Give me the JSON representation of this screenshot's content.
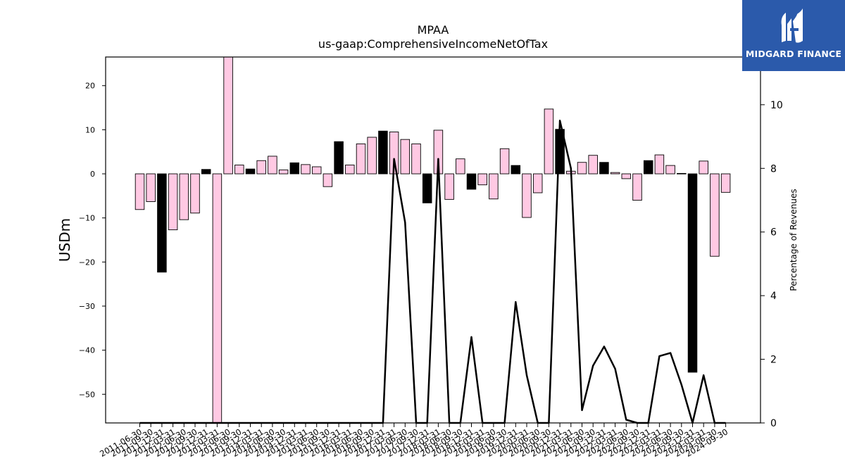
{
  "chart_data": {
    "type": "bar",
    "title": "MPAA",
    "subtitle": "us-gaap:ComprehensiveIncomeNetOfTax",
    "ylabel": "USDm",
    "y2label": "Percentage of Revenues",
    "ylim": [
      -56.5,
      26.5
    ],
    "y2lim": [
      0,
      11.5
    ],
    "yticks": [
      20,
      10,
      0,
      -10,
      -20,
      -30,
      -40,
      -50
    ],
    "y2ticks": [
      0,
      2,
      4,
      6,
      8,
      10
    ],
    "categories": [
      "2011-06-30",
      "2011-09-30",
      "2011-12-31",
      "2012-03-31",
      "2012-06-30",
      "2012-09-30",
      "2012-12-31",
      "2013-03-31",
      "2013-06-30",
      "2013-09-30",
      "2013-12-31",
      "2014-03-31",
      "2014-06-30",
      "2014-09-30",
      "2014-12-31",
      "2015-03-31",
      "2015-06-30",
      "2015-09-30",
      "2015-12-31",
      "2016-03-31",
      "2016-06-30",
      "2016-09-30",
      "2016-12-31",
      "2017-03-31",
      "2017-06-30",
      "2017-09-30",
      "2017-12-31",
      "2018-03-31",
      "2018-06-30",
      "2018-09-30",
      "2018-12-31",
      "2019-03-31",
      "2019-06-30",
      "2019-09-30",
      "2019-12-31",
      "2020-03-31",
      "2020-06-30",
      "2020-09-30",
      "2020-12-31",
      "2021-03-31",
      "2021-06-30",
      "2021-09-30",
      "2021-12-31",
      "2022-03-31",
      "2022-06-30",
      "2022-09-30",
      "2022-12-31",
      "2023-03-31",
      "2023-06-30",
      "2023-09-30",
      "2023-12-31",
      "2024-03-31",
      "2024-06-30",
      "2024-09-30"
    ],
    "series": [
      {
        "values": [
          -8.1,
          -6.3,
          -22.3,
          -12.7,
          -10.4,
          -8.9,
          1.0,
          -56.5,
          26.5,
          2.0,
          1.1,
          3.0,
          4.0,
          0.9,
          2.5,
          2.1,
          1.6,
          -2.9,
          7.3,
          2.0,
          6.8,
          8.3,
          9.7,
          9.5,
          7.8,
          6.8,
          -6.6,
          9.9,
          -5.8,
          3.4,
          -3.5,
          -2.5,
          -5.7,
          5.7,
          1.9,
          -9.9,
          -4.3,
          14.7,
          10.1,
          0.6,
          2.6,
          4.2,
          2.6,
          0.3,
          -1.1,
          -6.0,
          3.0,
          4.3,
          1.9,
          0.1,
          -45.0,
          2.9,
          -18.7,
          -4.2
        ],
        "highlight": [
          false,
          false,
          true,
          false,
          false,
          false,
          true,
          false,
          false,
          false,
          true,
          false,
          false,
          false,
          true,
          false,
          false,
          false,
          true,
          false,
          false,
          false,
          true,
          false,
          false,
          false,
          true,
          false,
          false,
          false,
          true,
          false,
          false,
          false,
          true,
          false,
          false,
          false,
          true,
          false,
          false,
          false,
          true,
          false,
          false,
          false,
          true,
          false,
          false,
          false,
          true,
          false,
          false,
          false
        ]
      },
      {
        "values": [
          0,
          0,
          0,
          0,
          0,
          0,
          0,
          0,
          0,
          0,
          0,
          0,
          0,
          0,
          0,
          0,
          0,
          0,
          0,
          0,
          0,
          0,
          0,
          8.3,
          6.3,
          0,
          0,
          8.3,
          0,
          0,
          2.7,
          0,
          0,
          0,
          3.8,
          1.5,
          0,
          0,
          9.5,
          8.0,
          0.4,
          1.8,
          2.4,
          1.7,
          0.1,
          0,
          0,
          2.1,
          2.2,
          1.2,
          0,
          1.5,
          0,
          0
        ]
      }
    ],
    "colors": {
      "bar_fill": "#ffc9e3",
      "bar_highlight": "#000000",
      "line": "#000000",
      "axis": "#000000"
    }
  },
  "logo": {
    "text": "MIDGARD FINANCE",
    "color": "#2b5aab"
  }
}
